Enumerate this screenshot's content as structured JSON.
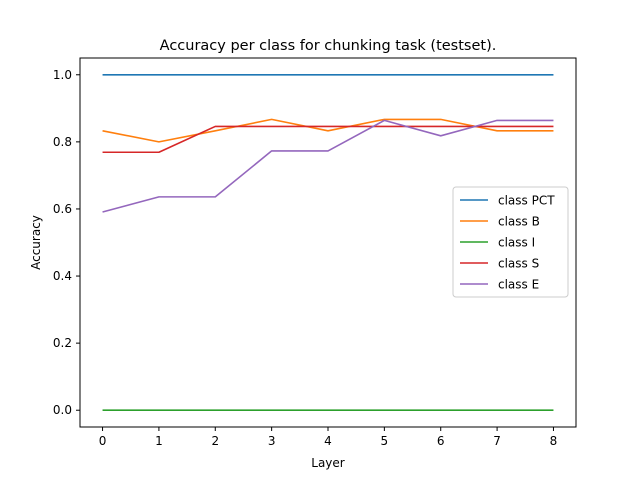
{
  "chart_data": {
    "type": "line",
    "title": "Accuracy per class for chunking task (testset).",
    "xlabel": "Layer",
    "ylabel": "Accuracy",
    "x": [
      0,
      1,
      2,
      3,
      4,
      5,
      6,
      7,
      8
    ],
    "xticks": [
      "0",
      "1",
      "2",
      "3",
      "4",
      "5",
      "6",
      "7",
      "8"
    ],
    "yticks": [
      "0.0",
      "0.2",
      "0.4",
      "0.6",
      "0.8",
      "1.0"
    ],
    "xlim": [
      -0.4,
      8.4
    ],
    "ylim": [
      -0.05,
      1.05
    ],
    "grid": false,
    "legend_position": "center-right",
    "series": [
      {
        "name": "class PCT",
        "color": "#1f77b4",
        "values": [
          1.0,
          1.0,
          1.0,
          1.0,
          1.0,
          1.0,
          1.0,
          1.0,
          1.0
        ]
      },
      {
        "name": "class B",
        "color": "#ff7f0e",
        "values": [
          0.833,
          0.8,
          0.833,
          0.867,
          0.833,
          0.867,
          0.867,
          0.833,
          0.833
        ]
      },
      {
        "name": "class I",
        "color": "#2ca02c",
        "values": [
          0.0,
          0.0,
          0.0,
          0.0,
          0.0,
          0.0,
          0.0,
          0.0,
          0.0
        ]
      },
      {
        "name": "class S",
        "color": "#d62728",
        "values": [
          0.769,
          0.769,
          0.846,
          0.846,
          0.846,
          0.846,
          0.846,
          0.846,
          0.846
        ]
      },
      {
        "name": "class E",
        "color": "#9467bd",
        "values": [
          0.591,
          0.636,
          0.636,
          0.773,
          0.773,
          0.864,
          0.818,
          0.864,
          0.864
        ]
      }
    ]
  }
}
